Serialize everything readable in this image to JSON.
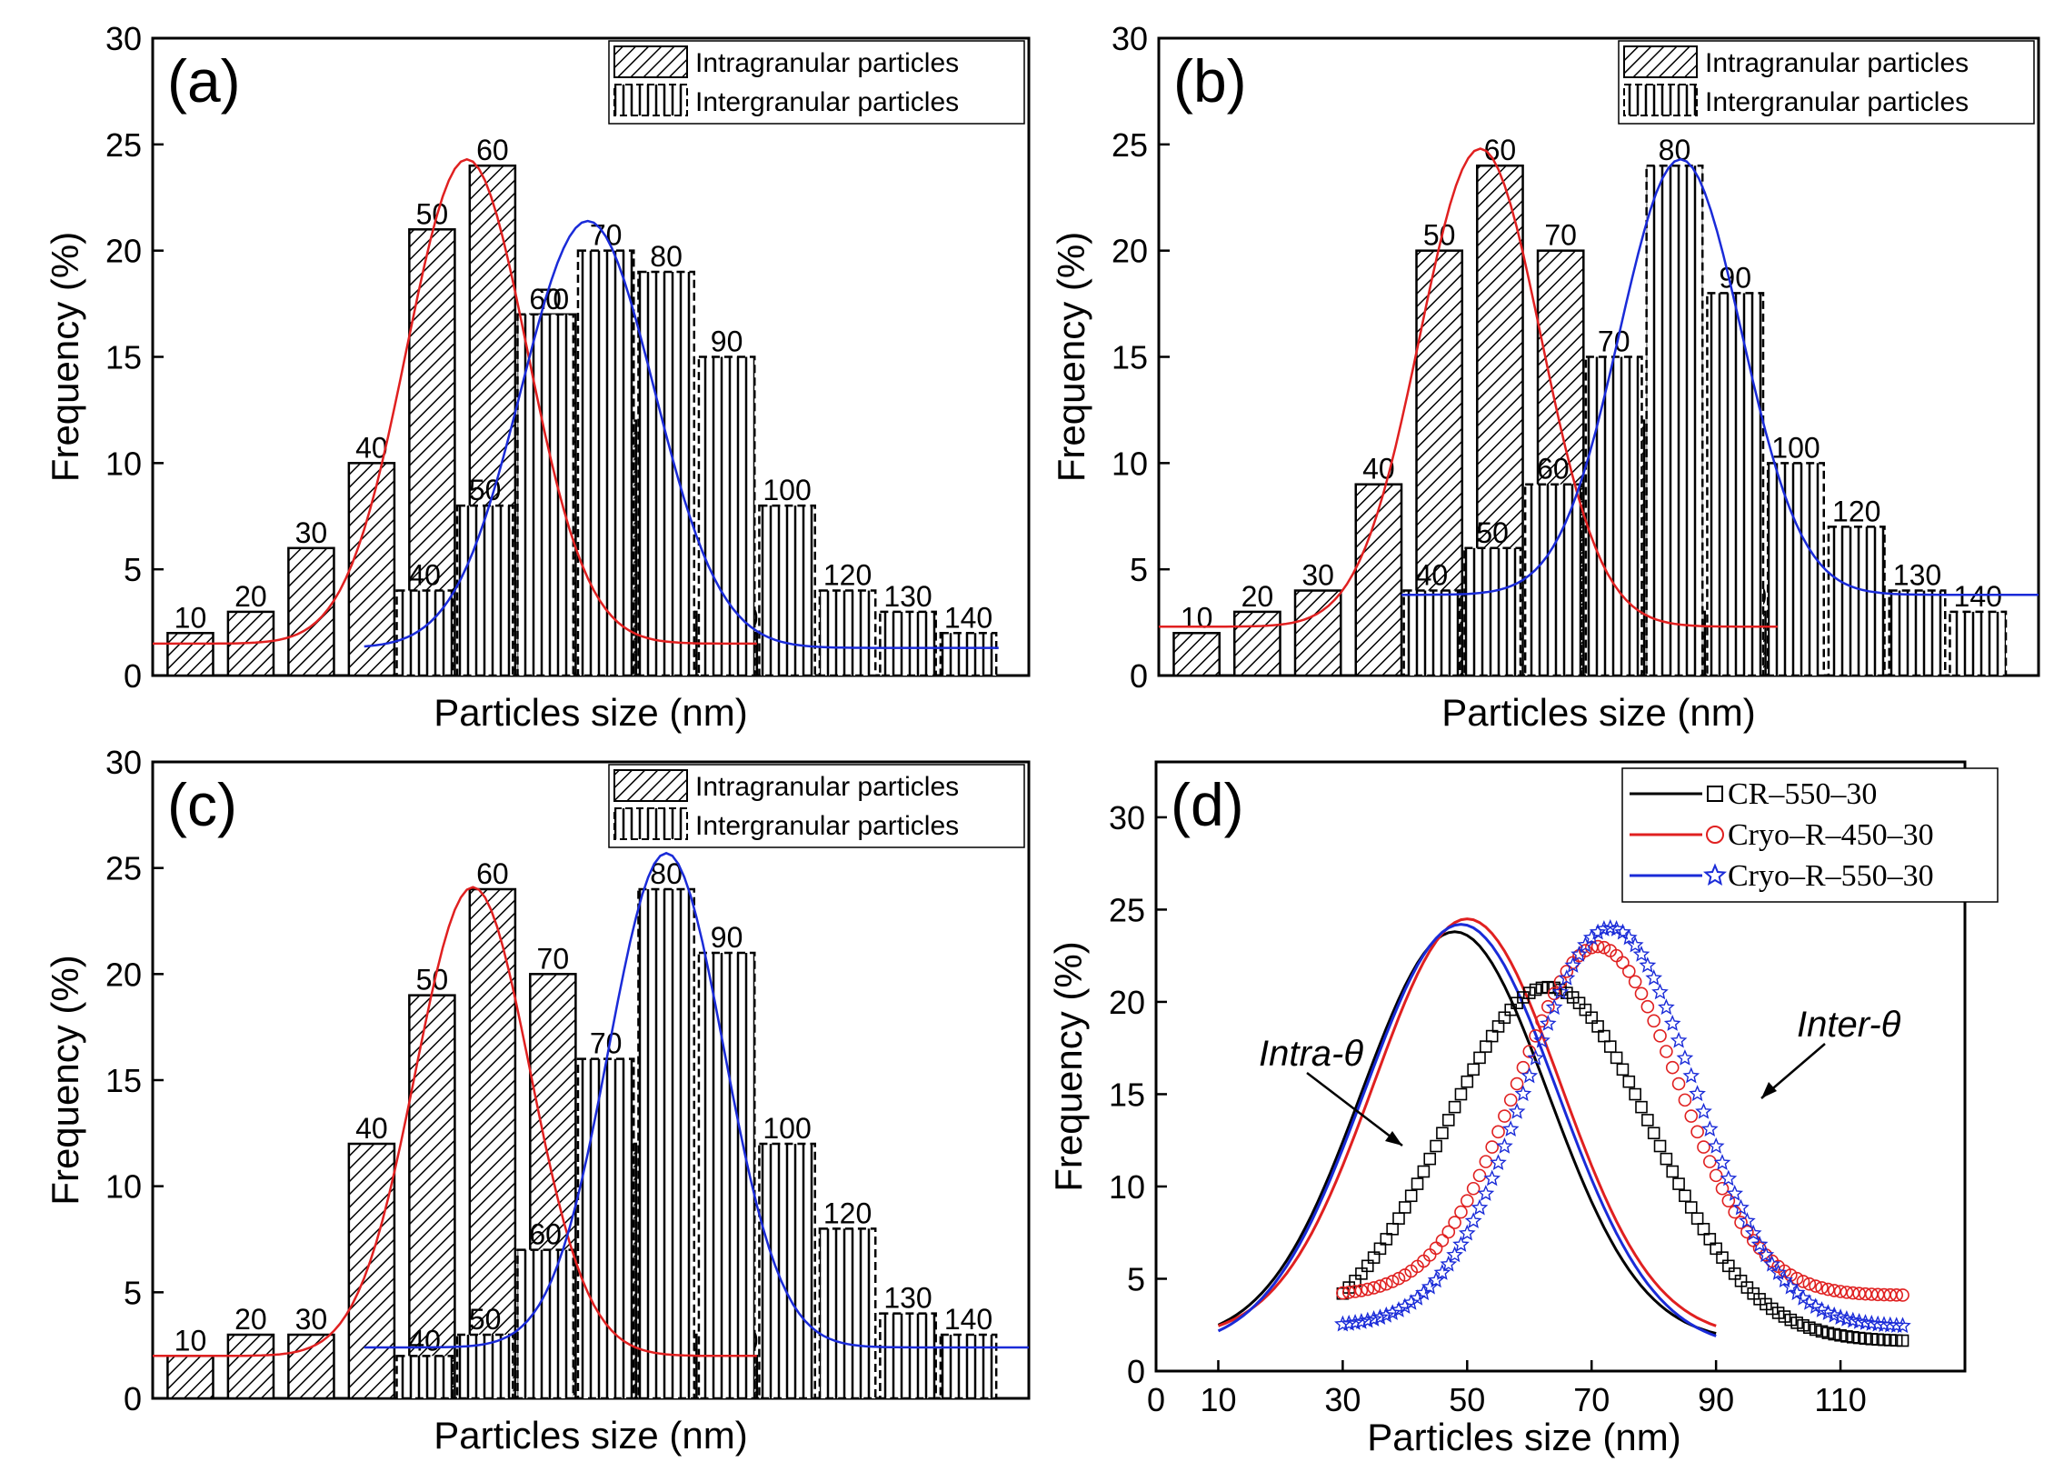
{
  "colors": {
    "red": "#e02020",
    "blue": "#1a2bd8",
    "black": "#000000"
  },
  "chart_data": [
    {
      "type": "bar",
      "panel_label": "(a)",
      "xlabel": "Particles size (nm)",
      "ylabel": "Frequency (%)",
      "ylim": [
        0,
        30
      ],
      "yticks": [
        "0",
        "5",
        "10",
        "15",
        "20",
        "25",
        "30"
      ],
      "legend": [
        "Intragranular particles",
        "Intergranular particles"
      ],
      "intra": [
        {
          "label": "10",
          "value": 2
        },
        {
          "label": "20",
          "value": 3
        },
        {
          "label": "30",
          "value": 6
        },
        {
          "label": "40",
          "value": 10
        },
        {
          "label": "50",
          "value": 21
        },
        {
          "label": "60",
          "value": 24
        },
        {
          "label": "70",
          "value": 17
        },
        {
          "label": "80",
          "value": 12
        },
        {
          "label": "90",
          "value": 3
        },
        {
          "label": "100",
          "value": 2
        }
      ],
      "inter": [
        {
          "label": "40",
          "value": 4
        },
        {
          "label": "50",
          "value": 8
        },
        {
          "label": "60",
          "value": 17
        },
        {
          "label": "70",
          "value": 20
        },
        {
          "label": "80",
          "value": 19
        },
        {
          "label": "90",
          "value": 15
        },
        {
          "label": "100",
          "value": 8
        },
        {
          "label": "120",
          "value": 4
        },
        {
          "label": "130",
          "value": 3
        },
        {
          "label": "140",
          "value": 2
        }
      ],
      "fit_intra": {
        "y0": 1.5,
        "A": 22.8,
        "xc": 52,
        "w": 20,
        "from": 0,
        "to": 100
      },
      "fit_inter": {
        "y0": 1.3,
        "A": 20.1,
        "xc": 72,
        "w": 22,
        "from": 35,
        "to": 140
      }
    },
    {
      "type": "bar",
      "panel_label": "(b)",
      "xlabel": "Particles size (nm)",
      "ylabel": "Frequency (%)",
      "ylim": [
        0,
        30
      ],
      "yticks": [
        "0",
        "5",
        "10",
        "15",
        "20",
        "25",
        "30"
      ],
      "legend": [
        "Intragranular particles",
        "Intergranular particles"
      ],
      "intra": [
        {
          "label": "10",
          "value": 2
        },
        {
          "label": "20",
          "value": 3
        },
        {
          "label": "30",
          "value": 4
        },
        {
          "label": "40",
          "value": 9
        },
        {
          "label": "50",
          "value": 20
        },
        {
          "label": "60",
          "value": 24
        },
        {
          "label": "70",
          "value": 20
        },
        {
          "label": "80",
          "value": 12
        },
        {
          "label": "90",
          "value": 3
        },
        {
          "label": "100",
          "value": 3
        }
      ],
      "inter": [
        {
          "label": "40",
          "value": 4
        },
        {
          "label": "50",
          "value": 6
        },
        {
          "label": "60",
          "value": 9
        },
        {
          "label": "70",
          "value": 15
        },
        {
          "label": "80",
          "value": 24
        },
        {
          "label": "90",
          "value": 18
        },
        {
          "label": "100",
          "value": 10
        },
        {
          "label": "120",
          "value": 7
        },
        {
          "label": "130",
          "value": 4
        },
        {
          "label": "140",
          "value": 3
        }
      ],
      "fit_intra": {
        "y0": 2.3,
        "A": 22.5,
        "xc": 53,
        "w": 20,
        "from": 0,
        "to": 102
      },
      "fit_inter": {
        "y0": 3.8,
        "A": 20.5,
        "xc": 86,
        "w": 20,
        "from": 40,
        "to": 145
      }
    },
    {
      "type": "bar",
      "panel_label": "(c)",
      "xlabel": "Particles size (nm)",
      "ylabel": "Frequency (%)",
      "ylim": [
        0,
        30
      ],
      "yticks": [
        "0",
        "5",
        "10",
        "15",
        "20",
        "25",
        "30"
      ],
      "legend": [
        "Intragranular particles",
        "Intergranular particles"
      ],
      "intra": [
        {
          "label": "10",
          "value": 2
        },
        {
          "label": "20",
          "value": 3
        },
        {
          "label": "30",
          "value": 3
        },
        {
          "label": "40",
          "value": 12
        },
        {
          "label": "50",
          "value": 19
        },
        {
          "label": "60",
          "value": 24
        },
        {
          "label": "70",
          "value": 20
        },
        {
          "label": "80",
          "value": 12
        },
        {
          "label": "90",
          "value": 3
        },
        {
          "label": "100",
          "value": 2
        }
      ],
      "inter": [
        {
          "label": "40",
          "value": 2
        },
        {
          "label": "50",
          "value": 3
        },
        {
          "label": "60",
          "value": 7
        },
        {
          "label": "70",
          "value": 16
        },
        {
          "label": "80",
          "value": 24
        },
        {
          "label": "90",
          "value": 21
        },
        {
          "label": "100",
          "value": 12
        },
        {
          "label": "120",
          "value": 8
        },
        {
          "label": "130",
          "value": 4
        },
        {
          "label": "140",
          "value": 3
        }
      ],
      "fit_intra": {
        "y0": 2,
        "A": 22.1,
        "xc": 53,
        "w": 19,
        "from": 0,
        "to": 100
      },
      "fit_inter": {
        "y0": 2.4,
        "A": 23.3,
        "xc": 85,
        "w": 19,
        "from": 35,
        "to": 145
      }
    },
    {
      "type": "line",
      "panel_label": "(d)",
      "xlabel": "Particles size (nm)",
      "ylabel": "Frequency (%)",
      "xlim": [
        0,
        130
      ],
      "ylim": [
        0,
        33
      ],
      "xticks": [
        "0",
        "10",
        "30",
        "50",
        "70",
        "90",
        "110"
      ],
      "yticks": [
        "0",
        "5",
        "10",
        "15",
        "20",
        "25",
        "30"
      ],
      "legend": [
        "CR–550–30",
        "Cryo–R–450–30",
        "Cryo–R–550–30"
      ],
      "annotations": [
        "Intra-θ",
        "Inter-θ"
      ],
      "intra_curves": [
        {
          "name": "CR–550–30",
          "color": "#000000",
          "y0": 1.6,
          "A": 22.2,
          "xc": 48,
          "w": 30
        },
        {
          "name": "Cryo–R–450–30",
          "color": "#e02020",
          "y0": 1.8,
          "A": 22.7,
          "xc": 50,
          "w": 30
        },
        {
          "name": "Cryo–R–550–30",
          "color": "#1a2bd8",
          "y0": 1.2,
          "A": 23,
          "xc": 49,
          "w": 31
        }
      ],
      "inter_curves": [
        {
          "name": "CR–550–30",
          "color": "#000000",
          "marker": "square",
          "y0": 1.6,
          "A": 19.2,
          "xc": 63,
          "w": 33,
          "from": 30,
          "to": 120
        },
        {
          "name": "Cryo–R–450–30",
          "color": "#e02020",
          "marker": "circle",
          "y0": 4.1,
          "A": 18.9,
          "xc": 71,
          "w": 26,
          "from": 30,
          "to": 120
        },
        {
          "name": "Cryo–R–550–30",
          "color": "#1a2bd8",
          "marker": "star",
          "y0": 2.4,
          "A": 21.6,
          "xc": 73,
          "w": 27,
          "from": 30,
          "to": 120
        }
      ]
    }
  ]
}
